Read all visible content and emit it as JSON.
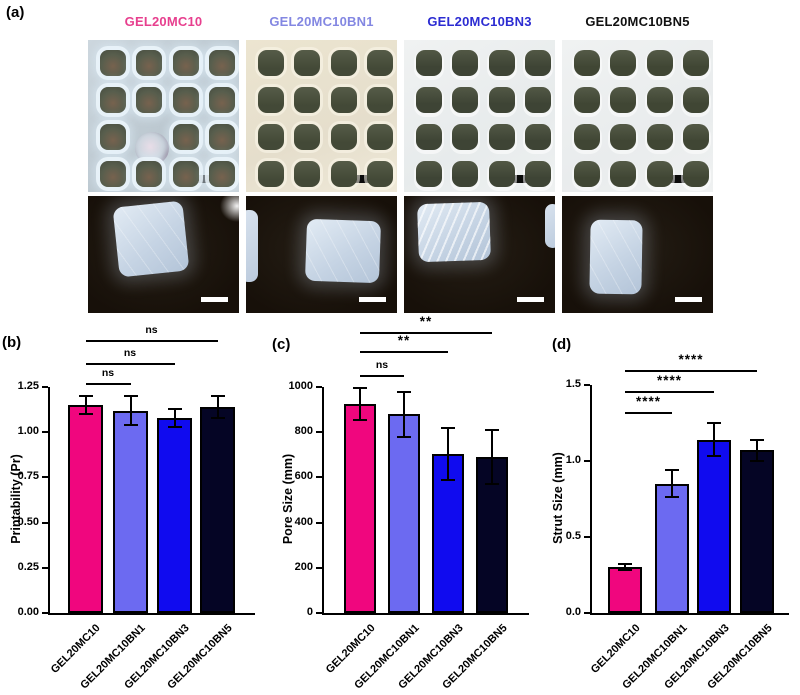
{
  "figure": {
    "panel_labels": {
      "a": "(a)",
      "b": "(b)",
      "c": "(c)",
      "d": "(d)"
    },
    "samples": [
      {
        "name": "GEL20MC10",
        "label_color": "#e73f8e",
        "bar_color": "#f0067e"
      },
      {
        "name": "GEL20MC10BN1",
        "label_color": "#8387e2",
        "bar_color": "#6c6af1"
      },
      {
        "name": "GEL20MC10BN3",
        "label_color": "#2c2cd2",
        "bar_color": "#100bef"
      },
      {
        "name": "GEL20MC10BN5",
        "label_color": "#111111",
        "bar_color": "#050525"
      }
    ]
  },
  "chart_data": [
    {
      "type": "bar",
      "panel": "(b)",
      "ylabel": "Printability (Pr)",
      "ylim": [
        0,
        1.25
      ],
      "yticks": [
        "0.00",
        "0.25",
        "0.50",
        "0.75",
        "1.00",
        "1.25"
      ],
      "categories": [
        "GEL20MC10",
        "GEL20MC10BN1",
        "GEL20MC10BN3",
        "GEL20MC10BN5"
      ],
      "values": [
        1.15,
        1.12,
        1.08,
        1.14
      ],
      "errors": [
        0.05,
        0.08,
        0.05,
        0.06
      ],
      "significance": [
        {
          "from": 0,
          "to": 1,
          "label": "ns"
        },
        {
          "from": 0,
          "to": 2,
          "label": "ns"
        },
        {
          "from": 0,
          "to": 3,
          "label": "ns"
        }
      ],
      "grid": false,
      "legend": "none"
    },
    {
      "type": "bar",
      "panel": "(c)",
      "ylabel": "Pore Size (mm)",
      "ylim": [
        0,
        1000
      ],
      "yticks": [
        "0",
        "200",
        "400",
        "600",
        "800",
        "1000"
      ],
      "categories": [
        "GEL20MC10",
        "GEL20MC10BN1",
        "GEL20MC10BN3",
        "GEL20MC10BN5"
      ],
      "values": [
        925,
        880,
        705,
        690
      ],
      "errors": [
        70,
        100,
        115,
        120
      ],
      "significance": [
        {
          "from": 0,
          "to": 1,
          "label": "ns"
        },
        {
          "from": 0,
          "to": 2,
          "label": "**"
        },
        {
          "from": 0,
          "to": 3,
          "label": "**"
        }
      ],
      "grid": false,
      "legend": "none"
    },
    {
      "type": "bar",
      "panel": "(d)",
      "ylabel": "Strut Size (mm)",
      "ylim": [
        0,
        1.5
      ],
      "yticks": [
        "0.0",
        "0.5",
        "1.0",
        "1.5"
      ],
      "categories": [
        "GEL20MC10",
        "GEL20MC10BN1",
        "GEL20MC10BN3",
        "GEL20MC10BN5"
      ],
      "values": [
        0.3,
        0.85,
        1.14,
        1.07
      ],
      "errors": [
        0.02,
        0.09,
        0.11,
        0.07
      ],
      "significance": [
        {
          "from": 0,
          "to": 1,
          "label": "****"
        },
        {
          "from": 0,
          "to": 2,
          "label": "****"
        },
        {
          "from": 0,
          "to": 3,
          "label": "****"
        }
      ],
      "grid": false,
      "legend": "none"
    }
  ]
}
